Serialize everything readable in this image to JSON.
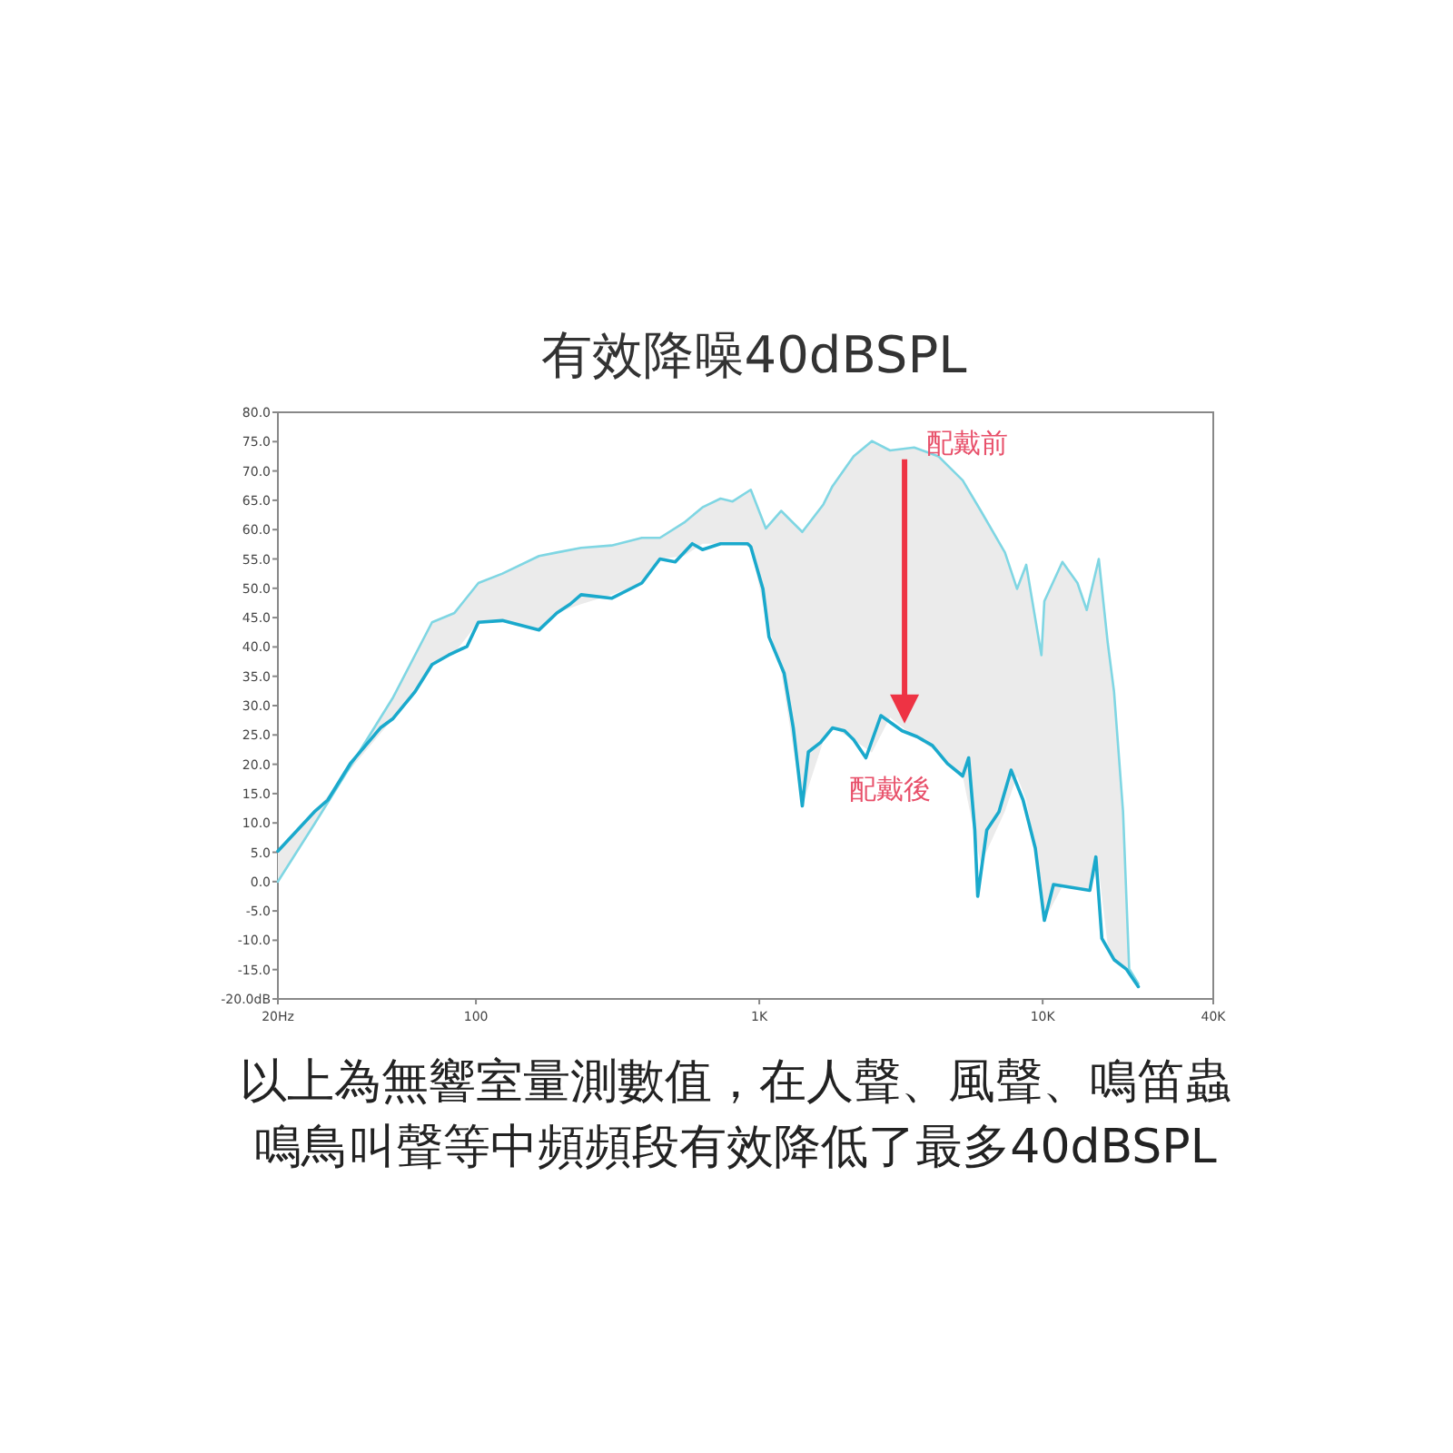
{
  "chart_data": {
    "type": "line",
    "title": "有效降噪40dBSPL",
    "annotations": [
      "以上為無響室量測數值，在人聲、風聲、鳴笛蟲鳴鳥叫聲等中頻頻段有效降低了最多40dBSPL"
    ],
    "log": "x",
    "xlim": [
      20,
      40000
    ],
    "ylim": [
      -20,
      80
    ],
    "xticks": [
      {
        "value": 20,
        "label": "20Hz"
      },
      100,
      {
        "value": 1000,
        "label": "1K"
      },
      {
        "value": 10000,
        "label": "10K"
      },
      {
        "value": 40000,
        "label": "40K"
      }
    ],
    "yticks": [
      {
        "value": 80,
        "label": "80.0"
      },
      {
        "value": 75,
        "label": "75.0"
      },
      {
        "value": 70,
        "label": "70.0"
      },
      {
        "value": 65,
        "label": "65.0"
      },
      {
        "value": 60,
        "label": "60.0"
      },
      {
        "value": 55,
        "label": "55.0"
      },
      {
        "value": 50,
        "label": "50.0"
      },
      {
        "value": 45,
        "label": "45.0"
      },
      {
        "value": 40,
        "label": "40.0"
      },
      {
        "value": 35,
        "label": "35.0"
      },
      {
        "value": 30,
        "label": "30.0"
      },
      {
        "value": 25,
        "label": "25.0"
      },
      {
        "value": 20,
        "label": "20.0"
      },
      {
        "value": 15,
        "label": "15.0"
      },
      {
        "value": 10,
        "label": "10.0"
      },
      {
        "value": 5,
        "label": "5.0"
      },
      {
        "value": 0,
        "label": "0.0"
      },
      {
        "value": -5,
        "label": "-5.0"
      },
      {
        "value": -10,
        "label": "-10.0"
      },
      {
        "value": -15,
        "label": "-15.0"
      },
      {
        "value": -20,
        "label": "-20.0dB"
      }
    ],
    "grid": false,
    "marker": "none",
    "line_style": "solid",
    "series": [
      {
        "name": "配戴前",
        "color": "#7fd6e3",
        "x": [
          20,
          26.9,
          51,
          70,
          84,
          102,
          124,
          167,
          193,
          235,
          301,
          385,
          446,
          543,
          630,
          730,
          805,
          933,
          1055,
          1194,
          1418,
          1683,
          1812,
          2152,
          2496,
          2894,
          3520,
          4286,
          5220,
          6050,
          7360,
          8120,
          8750,
          9900,
          10140,
          11740,
          13270,
          14310,
          15780,
          16980,
          17860,
          19220,
          20200,
          21760
        ],
        "values": [
          0,
          9.8,
          31.4,
          44.2,
          45.8,
          50.9,
          52.5,
          55.5,
          56.1,
          56.9,
          57.3,
          58.6,
          58.6,
          61.2,
          63.8,
          65.3,
          64.8,
          66.8,
          60.2,
          63.2,
          59.6,
          64.3,
          67.4,
          72.5,
          75.1,
          73.5,
          74,
          72.5,
          68.4,
          63.2,
          56.1,
          49.9,
          54,
          38.6,
          47.8,
          54.5,
          50.9,
          46.3,
          55,
          40.6,
          32.4,
          11.9,
          -14.9,
          -17.4
        ],
        "lower": [
          5.2,
          11.9,
          27.8,
          37,
          39,
          44.2,
          44.5,
          42.9,
          45.8,
          47.3,
          48.9,
          50.9,
          55,
          55.5,
          57.6,
          57.6,
          57.6,
          57.1,
          45,
          36,
          12.9,
          24,
          26.2,
          24.2,
          22,
          28,
          24.7,
          22,
          18,
          3,
          12,
          18,
          13.9,
          0,
          -6.6,
          -0.8,
          -1.2,
          -1.5,
          2,
          -11,
          -13.3,
          -14.5,
          -15.2,
          -17.9
        ],
        "upper": [
          0,
          9.8,
          31.4,
          44.2,
          45.8,
          50.9,
          52.5,
          55.5,
          56.1,
          56.9,
          57.3,
          58.6,
          58.6,
          61.2,
          63.8,
          65.3,
          64.8,
          66.8,
          60.2,
          63.2,
          59.6,
          64.3,
          67.4,
          72.5,
          75.1,
          73.5,
          74,
          72.5,
          68.4,
          63.2,
          56.1,
          49.9,
          54,
          38.6,
          47.8,
          54.5,
          50.9,
          46.3,
          55,
          40.6,
          32.4,
          11.9,
          -14.9,
          -17.4
        ]
      },
      {
        "name": "配戴後",
        "color": "#1aa9cc",
        "x": [
          20,
          26.9,
          30,
          36,
          46,
          51,
          61,
          70,
          80,
          93,
          102,
          124,
          167,
          193,
          215,
          235,
          301,
          385,
          446,
          505,
          580,
          630,
          730,
          766,
          910,
          933,
          1030,
          1082,
          1224,
          1318,
          1418,
          1490,
          1644,
          1812,
          2000,
          2152,
          2378,
          2686,
          3192,
          3606,
          4080,
          4614,
          5220,
          5480,
          5760,
          5900,
          6350,
          7010,
          7740,
          8530,
          9420,
          10140,
          10920,
          12660,
          14670,
          15410,
          16180,
          17860,
          19720,
          21760
        ],
        "values": [
          5.2,
          11.9,
          13.9,
          20.1,
          26.2,
          27.8,
          32.4,
          37,
          38.6,
          40.1,
          44.2,
          44.5,
          42.9,
          45.8,
          47.3,
          48.9,
          48.3,
          50.9,
          55,
          54.5,
          57.6,
          56.6,
          57.6,
          57.6,
          57.6,
          57.1,
          49.9,
          41.7,
          35.5,
          26.2,
          12.9,
          22.1,
          23.7,
          26.2,
          25.7,
          24.2,
          21.1,
          28.3,
          25.7,
          24.7,
          23.2,
          20.1,
          18,
          21.1,
          8.8,
          -2.5,
          8.8,
          11.9,
          19,
          13.9,
          5.7,
          -6.6,
          -0.5,
          -1,
          -1.5,
          4.2,
          -9.7,
          -13.3,
          -14.9,
          -17.9
        ]
      }
    ]
  }
}
